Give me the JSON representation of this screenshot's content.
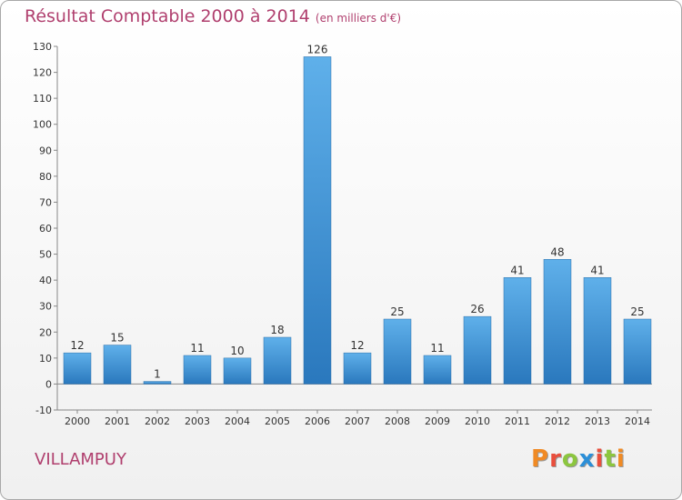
{
  "chart_data": {
    "type": "bar",
    "title": "Résultat Comptable 2000 à 2014",
    "subtitle": "(en milliers d'€)",
    "categories": [
      "2000",
      "2001",
      "2002",
      "2003",
      "2004",
      "2005",
      "2006",
      "2007",
      "2008",
      "2009",
      "2010",
      "2011",
      "2012",
      "2013",
      "2014"
    ],
    "values": [
      12,
      15,
      1,
      11,
      10,
      18,
      126,
      12,
      25,
      11,
      26,
      41,
      48,
      41,
      25
    ],
    "ylim": [
      -10,
      130
    ],
    "yticks": [
      -10,
      0,
      10,
      20,
      30,
      40,
      50,
      60,
      70,
      80,
      90,
      100,
      110,
      120,
      130
    ],
    "grid": false,
    "xlabel": "",
    "ylabel": ""
  },
  "commune": "VILLAMPUY",
  "brand": {
    "letters": [
      "P",
      "r",
      "o",
      "x",
      "i",
      "t",
      "i"
    ],
    "colors": [
      "#f08a24",
      "#e94f3d",
      "#8cc63f",
      "#2b8fd8",
      "#e94f3d",
      "#8cc63f",
      "#f08a24"
    ]
  },
  "colors": {
    "bar_light": "#5fb0ea",
    "bar_dark": "#2a78bd",
    "title": "#b03f6e",
    "axis": "#888888"
  }
}
